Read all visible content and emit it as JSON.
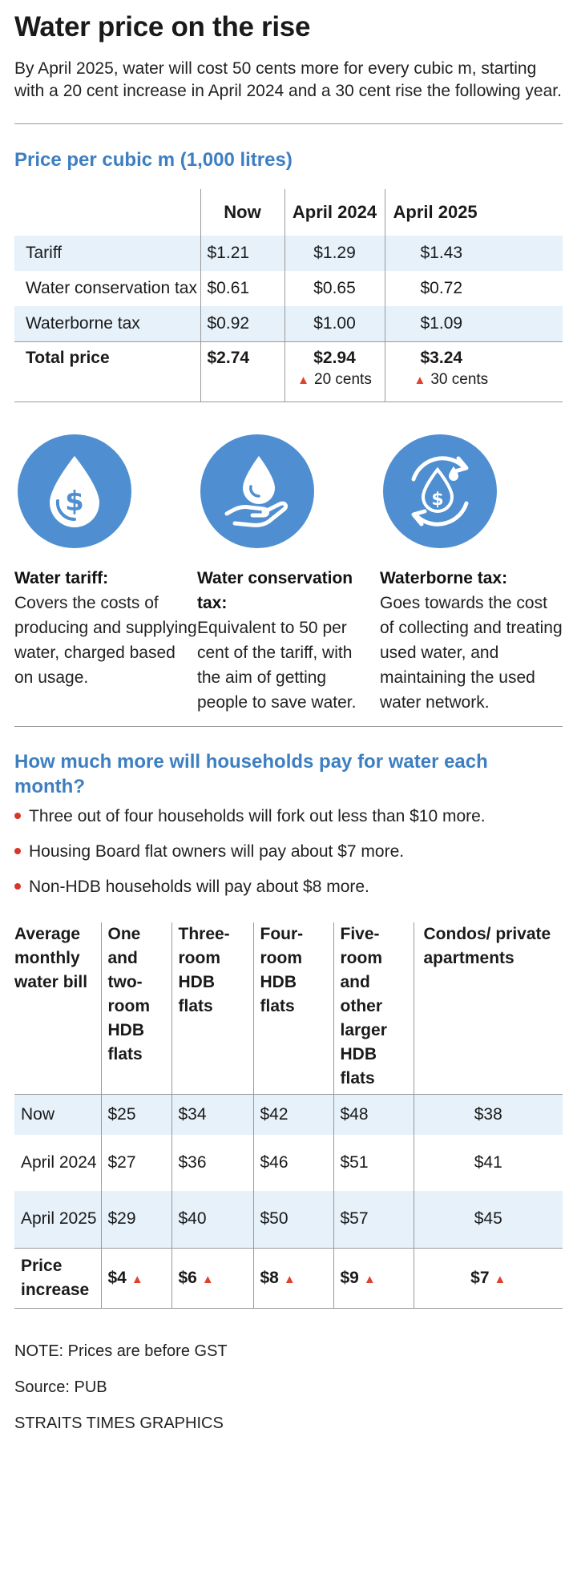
{
  "title": "Water price on the rise",
  "intro": "By April 2025, water will cost 50 cents more for every cubic m, starting with a 20 cent increase in April 2024 and a 30 cent rise the following year.",
  "price_table": {
    "title": "Price per cubic m (1,000 litres)",
    "columns": [
      "Now",
      "April 2024",
      "April 2025"
    ],
    "rows": [
      {
        "label": "Tariff",
        "values": [
          "$1.21",
          "$1.29",
          "$1.43"
        ]
      },
      {
        "label": "Water conservation tax",
        "values": [
          "$0.61",
          "$0.65",
          "$0.72"
        ]
      },
      {
        "label": "Waterborne tax",
        "values": [
          "$0.92",
          "$1.00",
          "$1.09"
        ]
      }
    ],
    "total": {
      "label": "Total price",
      "values": [
        "$2.74",
        "$2.94",
        "$3.24"
      ],
      "increases": [
        "20 cents",
        "30 cents"
      ]
    }
  },
  "icons": [
    {
      "icon": "water-drop-dollar-icon",
      "title": "Water tariff:",
      "text": "Covers the costs of producing and supplying water, charged based on usage."
    },
    {
      "icon": "hand-water-drop-icon",
      "title": "Water conservation tax:",
      "text": "Equivalent to 50 per cent of the tariff, with the aim of getting people to save water."
    },
    {
      "icon": "recycle-water-dollar-icon",
      "title": "Waterborne tax:",
      "text": "Goes towards the cost of collecting and treating used water, and maintaining the used water network."
    }
  ],
  "households": {
    "title": "How much more will households pay for water each month?",
    "bullets": [
      "Three out of four households will fork out less than $10 more.",
      "Housing Board flat owners will pay about $7 more.",
      "Non-HDB households will pay about $8 more."
    ]
  },
  "bill_table": {
    "header": "Average monthly water bill",
    "columns": [
      "One and two-room HDB flats",
      "Three-room HDB flats",
      "Four-room HDB flats",
      "Five-room and other larger HDB flats",
      "Condos/ private apartments"
    ],
    "rows": [
      {
        "label": "Now",
        "values": [
          "$25",
          "$34",
          "$42",
          "$48",
          "$38"
        ]
      },
      {
        "label": "April 2024",
        "values": [
          "$27",
          "$36",
          "$46",
          "$51",
          "$41"
        ]
      },
      {
        "label": "April 2025",
        "values": [
          "$29",
          "$40",
          "$50",
          "$57",
          "$45"
        ]
      }
    ],
    "total": {
      "label": "Price increase",
      "values": [
        "$4",
        "$6",
        "$8",
        "$9",
        "$7"
      ]
    }
  },
  "note": "NOTE:  Prices are before GST",
  "source": "Source: PUB",
  "credit": "STRAITS TIMES GRAPHICS",
  "colors": {
    "accent": "#3d7fc1",
    "icon_bg": "#4f8fd1",
    "shade": "#e6f1fa",
    "up_arrow": "#e0412c"
  }
}
